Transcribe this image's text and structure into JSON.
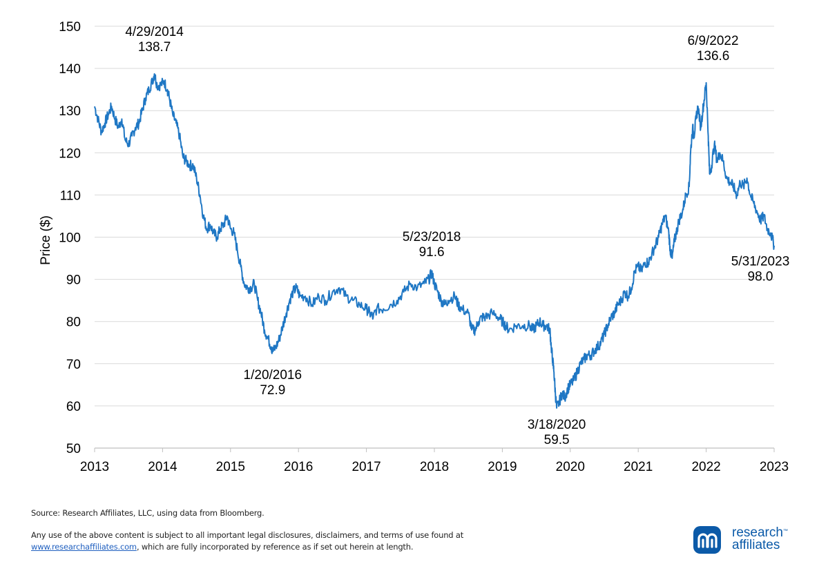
{
  "chart_data": {
    "type": "line",
    "title": "",
    "xlabel": "",
    "ylabel": "Price ($)",
    "ylim": [
      50,
      150
    ],
    "xlim": [
      2013,
      2023
    ],
    "yticks": [
      "50",
      "60",
      "70",
      "80",
      "90",
      "100",
      "110",
      "120",
      "130",
      "140",
      "150"
    ],
    "xticks": [
      "2013",
      "2014",
      "2015",
      "2016",
      "2017",
      "2018",
      "2019",
      "2020",
      "2021",
      "2022",
      "2023"
    ],
    "grid": "horizontal",
    "line_color": "#1f77c4",
    "series": [
      {
        "values": [
          [
            2013.0,
            131
          ],
          [
            2013.05,
            128
          ],
          [
            2013.1,
            125
          ],
          [
            2013.15,
            127
          ],
          [
            2013.2,
            129
          ],
          [
            2013.25,
            131
          ],
          [
            2013.3,
            128
          ],
          [
            2013.35,
            126
          ],
          [
            2013.4,
            128
          ],
          [
            2013.45,
            123
          ],
          [
            2013.5,
            122
          ],
          [
            2013.55,
            124
          ],
          [
            2013.6,
            126
          ],
          [
            2013.65,
            127
          ],
          [
            2013.7,
            130
          ],
          [
            2013.75,
            133
          ],
          [
            2013.8,
            135
          ],
          [
            2013.85,
            137
          ],
          [
            2013.88,
            138.7
          ],
          [
            2013.92,
            136
          ],
          [
            2013.97,
            136
          ],
          [
            2014.02,
            137
          ],
          [
            2014.07,
            135
          ],
          [
            2014.1,
            133
          ],
          [
            2014.15,
            129
          ],
          [
            2014.2,
            127
          ],
          [
            2014.25,
            124
          ],
          [
            2014.3,
            119
          ],
          [
            2014.35,
            118
          ],
          [
            2014.4,
            117
          ],
          [
            2014.45,
            117
          ],
          [
            2014.5,
            114
          ],
          [
            2014.55,
            110
          ],
          [
            2014.6,
            105
          ],
          [
            2014.65,
            102
          ],
          [
            2014.7,
            103
          ],
          [
            2014.75,
            101
          ],
          [
            2014.8,
            100
          ],
          [
            2014.85,
            102
          ],
          [
            2014.9,
            103
          ],
          [
            2014.95,
            105
          ],
          [
            2015.0,
            102
          ],
          [
            2015.05,
            101
          ],
          [
            2015.1,
            97
          ],
          [
            2015.15,
            93
          ],
          [
            2015.2,
            89
          ],
          [
            2015.25,
            88
          ],
          [
            2015.3,
            88
          ],
          [
            2015.35,
            89
          ],
          [
            2015.4,
            85
          ],
          [
            2015.45,
            82
          ],
          [
            2015.5,
            78
          ],
          [
            2015.55,
            76
          ],
          [
            2015.6,
            74
          ],
          [
            2015.62,
            72.9
          ],
          [
            2015.67,
            74
          ],
          [
            2015.72,
            76
          ],
          [
            2015.77,
            79
          ],
          [
            2015.82,
            82
          ],
          [
            2015.87,
            85
          ],
          [
            2015.92,
            87
          ],
          [
            2015.97,
            88
          ],
          [
            2016.02,
            86
          ],
          [
            2016.1,
            86
          ],
          [
            2016.2,
            84
          ],
          [
            2016.3,
            86
          ],
          [
            2016.4,
            85
          ],
          [
            2016.5,
            87
          ],
          [
            2016.6,
            88
          ],
          [
            2016.7,
            86
          ],
          [
            2016.8,
            85
          ],
          [
            2016.9,
            84
          ],
          [
            2017.0,
            83
          ],
          [
            2017.05,
            82
          ],
          [
            2017.1,
            81
          ],
          [
            2017.15,
            83
          ],
          [
            2017.25,
            83
          ],
          [
            2017.35,
            84
          ],
          [
            2017.45,
            85
          ],
          [
            2017.55,
            87
          ],
          [
            2017.65,
            89
          ],
          [
            2017.75,
            88
          ],
          [
            2017.85,
            89
          ],
          [
            2017.92,
            90
          ],
          [
            2017.96,
            91.6
          ],
          [
            2018.0,
            89
          ],
          [
            2018.05,
            87
          ],
          [
            2018.1,
            85
          ],
          [
            2018.15,
            84
          ],
          [
            2018.2,
            85
          ],
          [
            2018.3,
            86
          ],
          [
            2018.35,
            84
          ],
          [
            2018.4,
            83
          ],
          [
            2018.5,
            82
          ],
          [
            2018.55,
            78
          ],
          [
            2018.6,
            78
          ],
          [
            2018.65,
            80
          ],
          [
            2018.7,
            81
          ],
          [
            2018.75,
            81
          ],
          [
            2018.85,
            82
          ],
          [
            2018.95,
            81
          ],
          [
            2019.0,
            80
          ],
          [
            2019.05,
            79
          ],
          [
            2019.1,
            78
          ],
          [
            2019.2,
            79
          ],
          [
            2019.3,
            79
          ],
          [
            2019.4,
            79
          ],
          [
            2019.45,
            78
          ],
          [
            2019.5,
            79
          ],
          [
            2019.55,
            80
          ],
          [
            2019.6,
            79
          ],
          [
            2019.65,
            79
          ],
          [
            2019.7,
            78
          ],
          [
            2019.72,
            74
          ],
          [
            2019.74,
            71
          ],
          [
            2019.76,
            68
          ],
          [
            2019.78,
            63
          ],
          [
            2019.8,
            59.5
          ],
          [
            2019.84,
            61
          ],
          [
            2019.88,
            63
          ],
          [
            2019.92,
            62
          ],
          [
            2019.96,
            64
          ],
          [
            2020.0,
            65
          ],
          [
            2020.05,
            66
          ],
          [
            2020.1,
            68
          ],
          [
            2020.15,
            70
          ],
          [
            2020.2,
            71
          ],
          [
            2020.25,
            72
          ],
          [
            2020.3,
            72
          ],
          [
            2020.35,
            73
          ],
          [
            2020.4,
            74
          ],
          [
            2020.45,
            75
          ],
          [
            2020.5,
            77
          ],
          [
            2020.55,
            79
          ],
          [
            2020.6,
            81
          ],
          [
            2020.65,
            82
          ],
          [
            2020.7,
            84
          ],
          [
            2020.75,
            85
          ],
          [
            2020.8,
            87
          ],
          [
            2020.85,
            86
          ],
          [
            2020.9,
            88
          ],
          [
            2020.95,
            92
          ],
          [
            2021.0,
            93
          ],
          [
            2021.05,
            92
          ],
          [
            2021.1,
            94
          ],
          [
            2021.15,
            94
          ],
          [
            2021.2,
            96
          ],
          [
            2021.25,
            98
          ],
          [
            2021.3,
            100
          ],
          [
            2021.35,
            103
          ],
          [
            2021.4,
            105
          ],
          [
            2021.45,
            101
          ],
          [
            2021.47,
            97
          ],
          [
            2021.5,
            95
          ],
          [
            2021.53,
            99
          ],
          [
            2021.56,
            101
          ],
          [
            2021.6,
            104
          ],
          [
            2021.65,
            106
          ],
          [
            2021.7,
            110
          ],
          [
            2021.75,
            112
          ],
          [
            2021.77,
            120
          ],
          [
            2021.8,
            126
          ],
          [
            2021.82,
            124
          ],
          [
            2021.85,
            128
          ],
          [
            2021.88,
            131
          ],
          [
            2021.92,
            126
          ],
          [
            2021.95,
            130
          ],
          [
            2021.98,
            134
          ],
          [
            2022.0,
            136.6
          ],
          [
            2022.03,
            124
          ],
          [
            2022.05,
            115
          ],
          [
            2022.08,
            117
          ],
          [
            2022.12,
            122
          ],
          [
            2022.16,
            118
          ],
          [
            2022.2,
            120
          ],
          [
            2022.25,
            118
          ],
          [
            2022.3,
            114
          ],
          [
            2022.35,
            113
          ],
          [
            2022.4,
            112
          ],
          [
            2022.45,
            110
          ],
          [
            2022.5,
            113
          ],
          [
            2022.55,
            112
          ],
          [
            2022.6,
            114
          ],
          [
            2022.65,
            110
          ],
          [
            2022.7,
            108
          ],
          [
            2022.75,
            106
          ],
          [
            2022.8,
            104
          ],
          [
            2022.85,
            105
          ],
          [
            2022.9,
            102
          ],
          [
            2022.95,
            101
          ],
          [
            2023.0,
            98.0
          ]
        ]
      }
    ],
    "annotations": [
      {
        "date": "4/29/2014",
        "value": "138.7",
        "x": 2013.88,
        "y": 138.7
      },
      {
        "date": "1/20/2016",
        "value": "72.9",
        "x": 2015.62,
        "y": 72.9
      },
      {
        "date": "5/23/2018",
        "value": "91.6",
        "x": 2017.96,
        "y": 91.6
      },
      {
        "date": "3/18/2020",
        "value": "59.5",
        "x": 2019.8,
        "y": 59.5
      },
      {
        "date": "6/9/2022",
        "value": "136.6",
        "x": 2022.0,
        "y": 136.6
      },
      {
        "date": "5/31/2023",
        "value": "98.0",
        "x": 2023.0,
        "y": 98.0
      }
    ]
  },
  "footer": {
    "source": "Source: Research Affiliates, LLC, using data from Bloomberg.",
    "disclaimer_line1": "Any use of the above content is subject to all important legal disclosures, disclaimers, and terms of use found at",
    "disclaimer_link": "www.researchaffiliates.com",
    "disclaimer_line2": ", which are fully incorporated by reference as if set out herein at length."
  },
  "logo": {
    "line1": "research",
    "line2": "affiliates",
    "tm": "™",
    "color": "#0b5aa8"
  }
}
